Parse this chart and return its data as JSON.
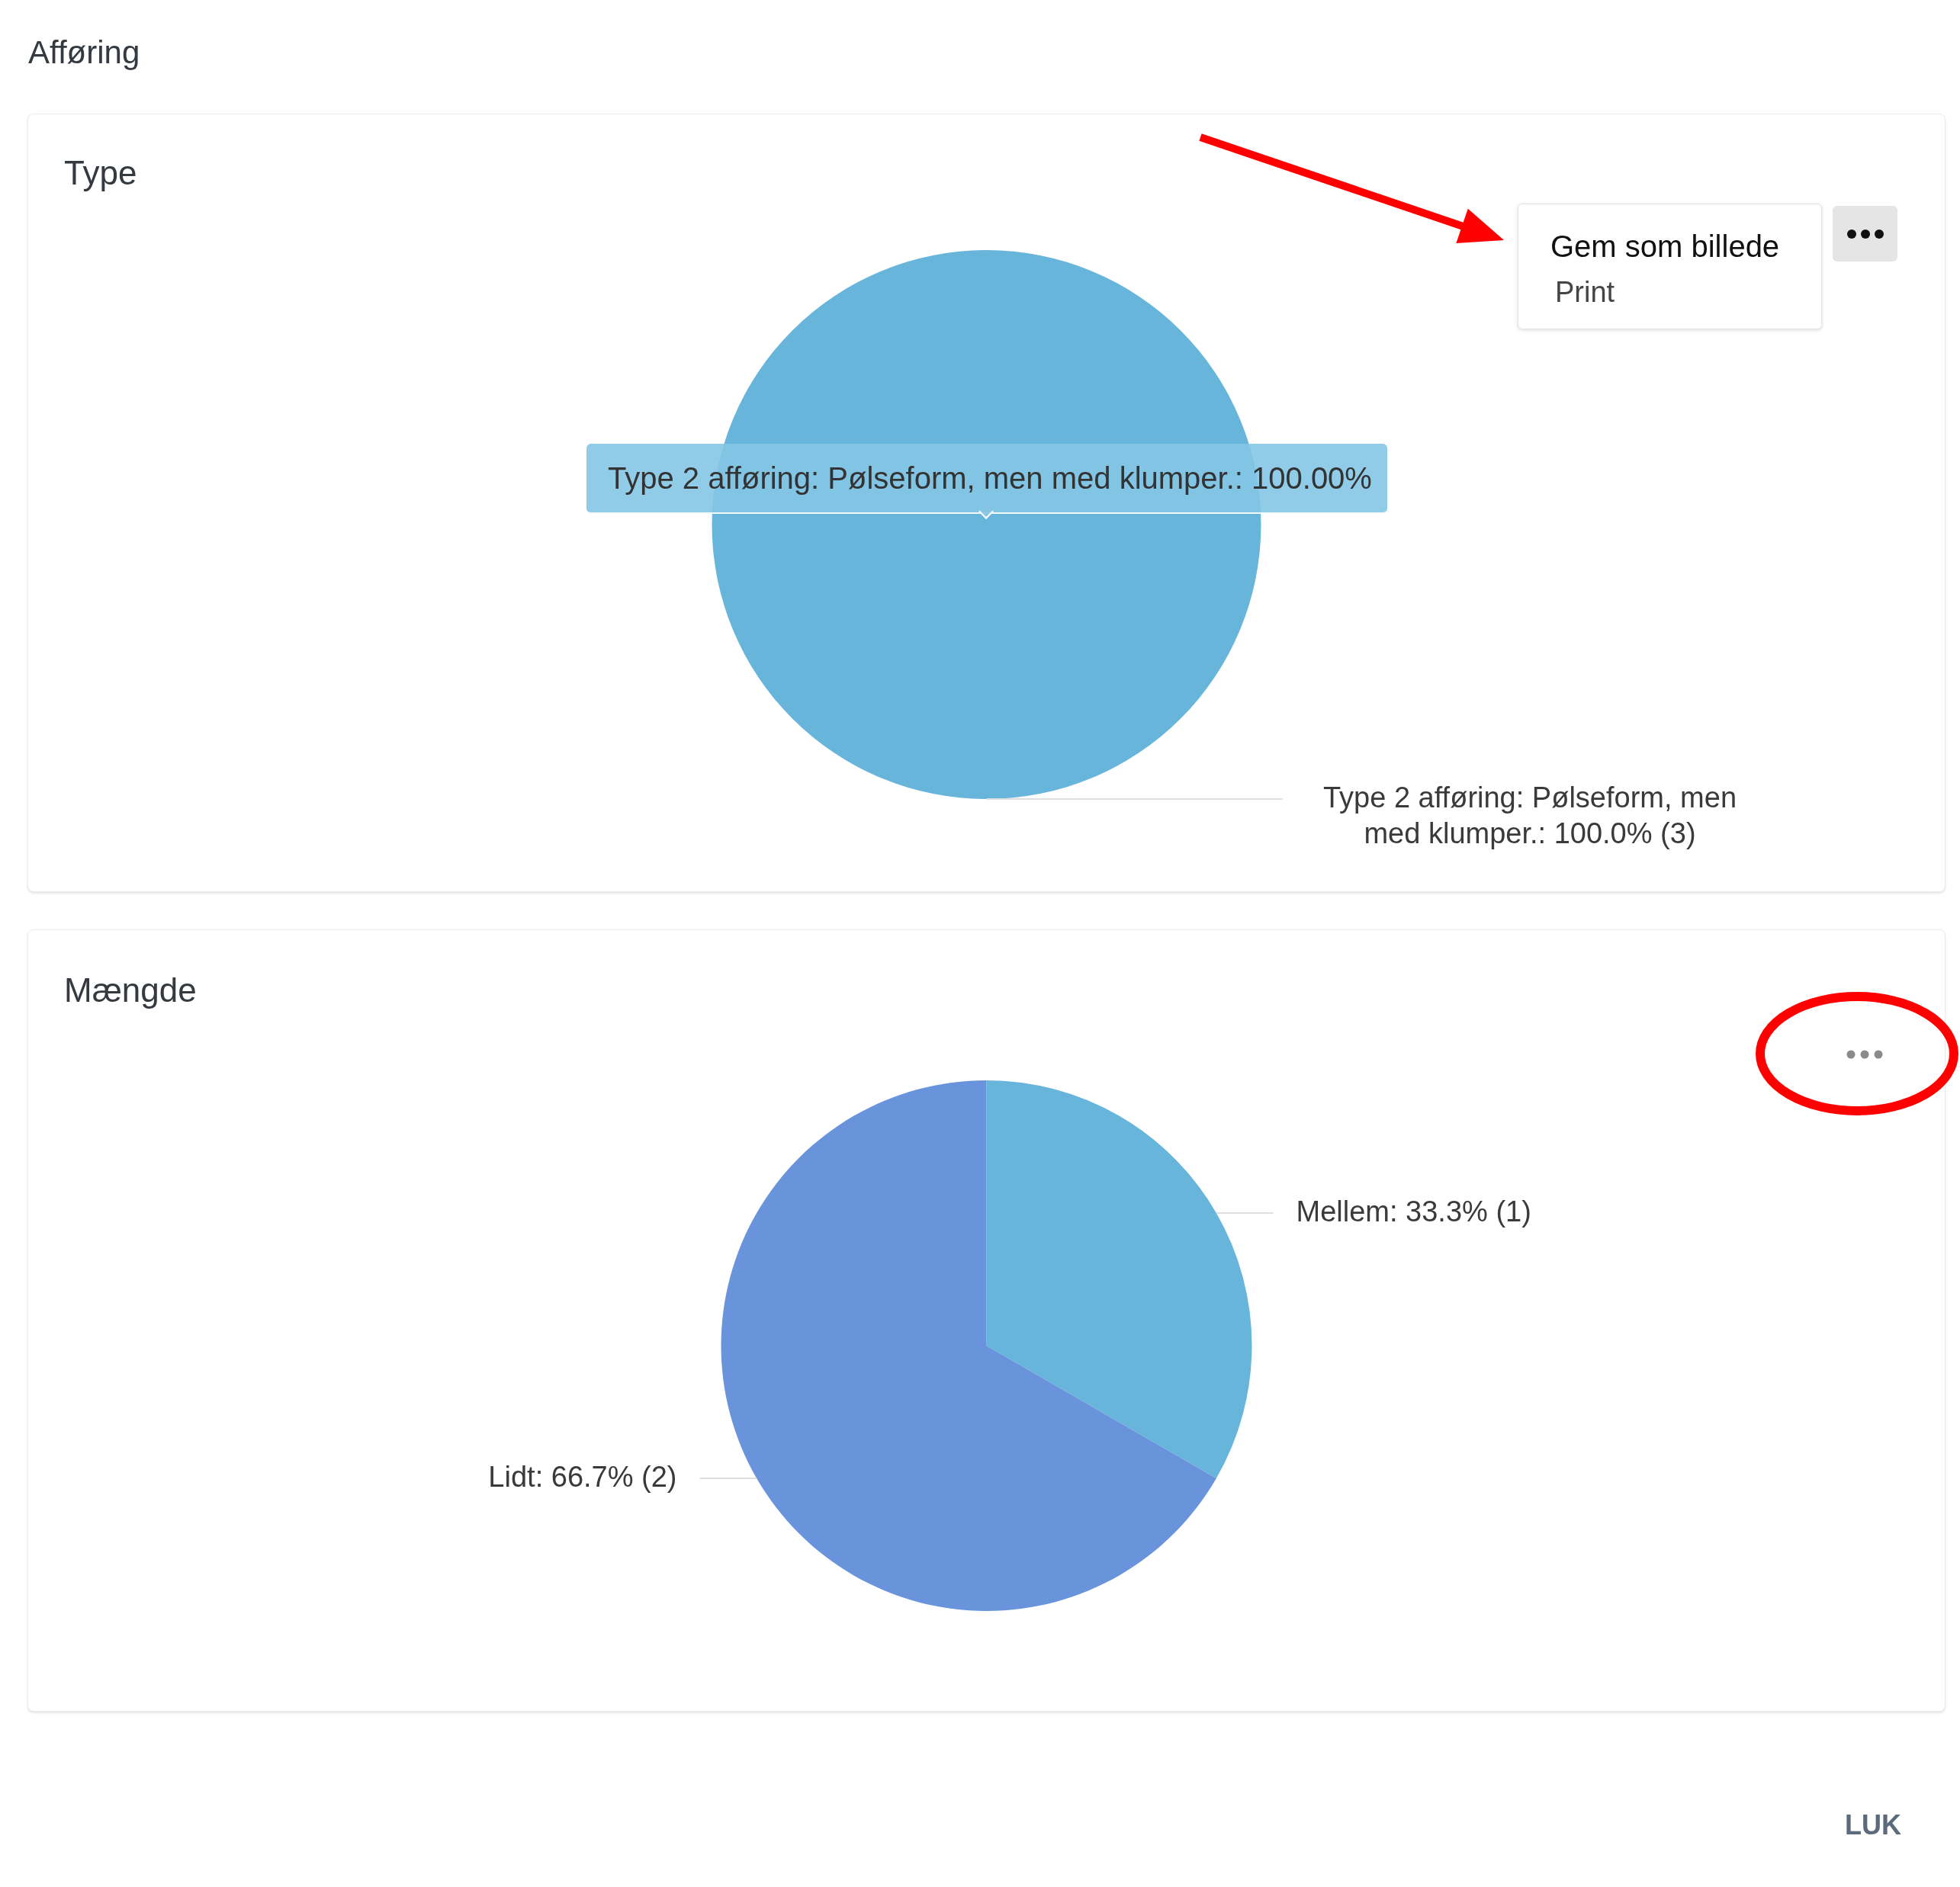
{
  "chart_data": [
    {
      "type": "pie",
      "categories": [
        "Type 2 afføring: Pølseform, men med klumper."
      ],
      "values": [
        3
      ],
      "colors": [
        "#67b5db"
      ],
      "value_labels": [
        "100.0% (3)"
      ],
      "annotations": [
        "Afføring",
        "Type",
        "Type 2 afføring: Pølseform, men med klumper.: 100.00%",
        "Gem som billede",
        "Print"
      ]
    },
    {
      "type": "pie",
      "title": "Mængde",
      "categories": [
        "Mellem",
        "Lidt"
      ],
      "values": [
        1,
        2
      ],
      "colors": [
        "#67b5db",
        "#6994dc"
      ],
      "value_labels": [
        "33.3% (1)",
        "66.7% (2)"
      ],
      "annotations": [
        "LUK"
      ]
    }
  ]
}
